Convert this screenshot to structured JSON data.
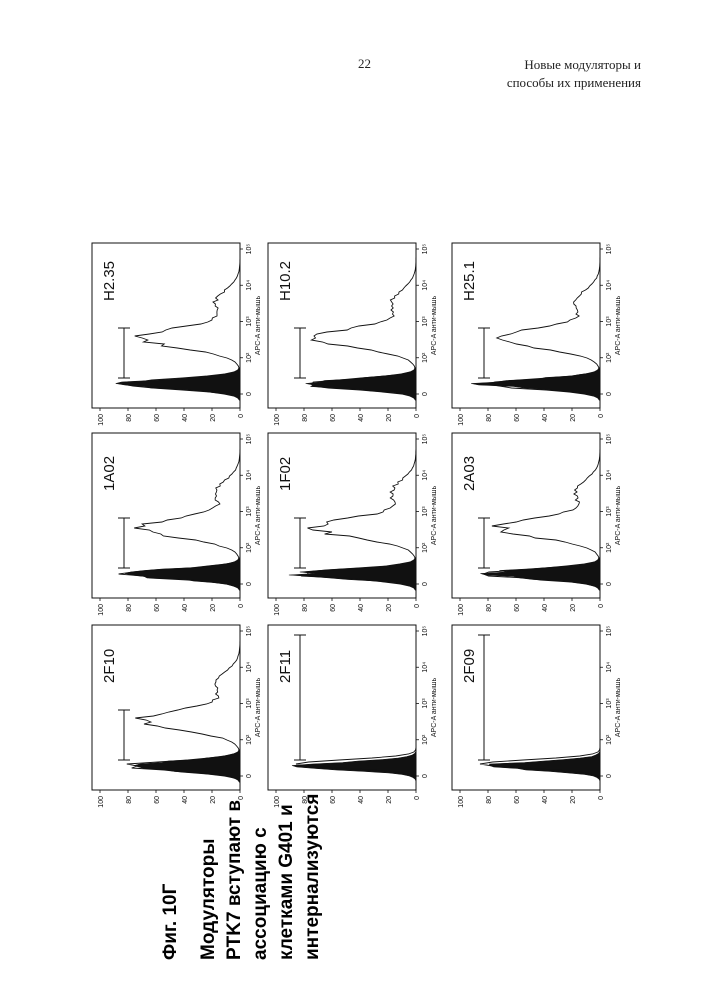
{
  "header": {
    "page_number": "22",
    "title_line1": "Новые модуляторы и",
    "title_line2": "способы их применения"
  },
  "figure": {
    "label": "Фиг. 10Г",
    "caption_lines": [
      "Модуляторы",
      "PTK7 вступают в",
      "ассоциацию с",
      "клетками G401 и",
      "интернализуются"
    ],
    "x_axis_label": "APC-A анти-мышь",
    "y_ticks": [
      "0",
      "20",
      "40",
      "60",
      "80",
      "100"
    ],
    "x_ticks": [
      "0",
      "10²",
      "10³",
      "10⁴",
      "10⁵"
    ],
    "panels": [
      {
        "id": "H2.35",
        "style": "wide"
      },
      {
        "id": "H10.2",
        "style": "wide"
      },
      {
        "id": "H25.1",
        "style": "wide"
      },
      {
        "id": "1A02",
        "style": "wide"
      },
      {
        "id": "1F02",
        "style": "wide"
      },
      {
        "id": "2A03",
        "style": "wide"
      },
      {
        "id": "2F10",
        "style": "wide"
      },
      {
        "id": "2F11",
        "style": "narrow"
      },
      {
        "id": "2F09",
        "style": "narrow"
      }
    ]
  }
}
